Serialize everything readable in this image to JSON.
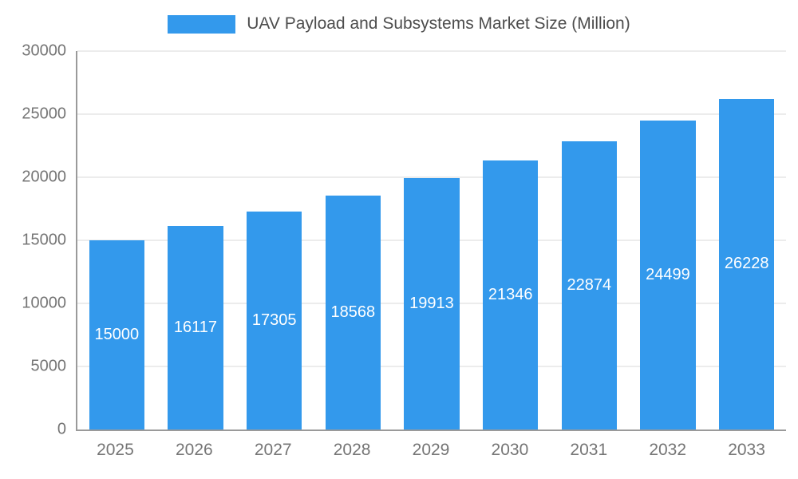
{
  "legend": {
    "title": "UAV Payload and Subsystems Market Size (Million)"
  },
  "chart_data": {
    "type": "bar",
    "title": "UAV Payload and Subsystems Market Size (Million)",
    "categories": [
      "2025",
      "2026",
      "2027",
      "2028",
      "2029",
      "2030",
      "2031",
      "2032",
      "2033"
    ],
    "values": [
      15000,
      16117,
      17305,
      18568,
      19913,
      21346,
      22874,
      24499,
      26228
    ],
    "xlabel": "",
    "ylabel": "",
    "ylim": [
      0,
      30000
    ],
    "ytick_step": 5000,
    "grid": true,
    "legend_position": "top",
    "value_labels": "inside-center"
  },
  "colors": {
    "bar": "#3399EC",
    "bar_label": "#ffffff",
    "axis_text": "#757575",
    "grid_line": "#d9d9d9",
    "axis_line": "#9a9a9a",
    "title_text": "#4d4d4d",
    "background": "#ffffff"
  }
}
